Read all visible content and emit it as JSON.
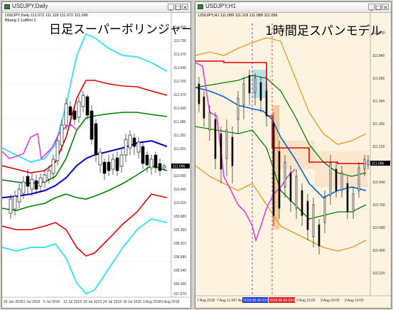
{
  "left_window": {
    "title": "USDJPY,Daily",
    "ohlc": "USDJPY,Daily  111.072 111.118 111.072 111.096",
    "indicator": "Bbang 3 1stBmi 3",
    "overlay": "日足スーパーボリンジャー",
    "price_axis": [
      "114.000",
      "113.730",
      "113.370",
      "113.040",
      "112.700",
      "112.370",
      "112.040",
      "111.680",
      "111.350",
      "111.020",
      "110.690",
      "110.340",
      "110.020",
      "109.680",
      "109.350",
      "109.010",
      "108.680",
      "108.340",
      "108.000",
      "107.670",
      "107.330"
    ],
    "current_price": "111.096",
    "date_axis": [
      "26 Jun 2018",
      "2 Jul 2018",
      "6 Jul 2018",
      "12 Jul 2018",
      "18 Jul 2018",
      "24 Jul 2018",
      "30 Jul 2018",
      "3 Aug 2018",
      "9 Aug 2018"
    ]
  },
  "right_window": {
    "title": "USDJPY,H1",
    "ohlc": "USDJPY,H1  111.099 111.118 111.088 111.096",
    "overlay": "1時間足スパンモデル",
    "price_axis": [
      "112.030",
      "111.840",
      "111.660",
      "111.490",
      "111.300",
      "111.120",
      "110.940",
      "110.760",
      "110.580",
      "110.400",
      "110.220"
    ],
    "current_price": "111.096",
    "date_axis": [
      "7 Aug 2018",
      "7 Aug 11:00",
      "7 Aug 15:00"
    ],
    "date_tags": [
      "2018.08.08 03:00",
      "2018.08.08 09:00"
    ],
    "date_axis_right": [
      "8 Aug 15:00",
      "9 Aug 03:00",
      "9 Aug 19:00"
    ]
  },
  "colors": {
    "band3": "#40e0f0",
    "band2": "#e00000",
    "band1": "#008000",
    "middle": "#0000cc",
    "lagging": "#e040e0",
    "span_upper": "#e89a20",
    "blue_tag": "#1a3ad8",
    "red_tag": "#e02020"
  }
}
